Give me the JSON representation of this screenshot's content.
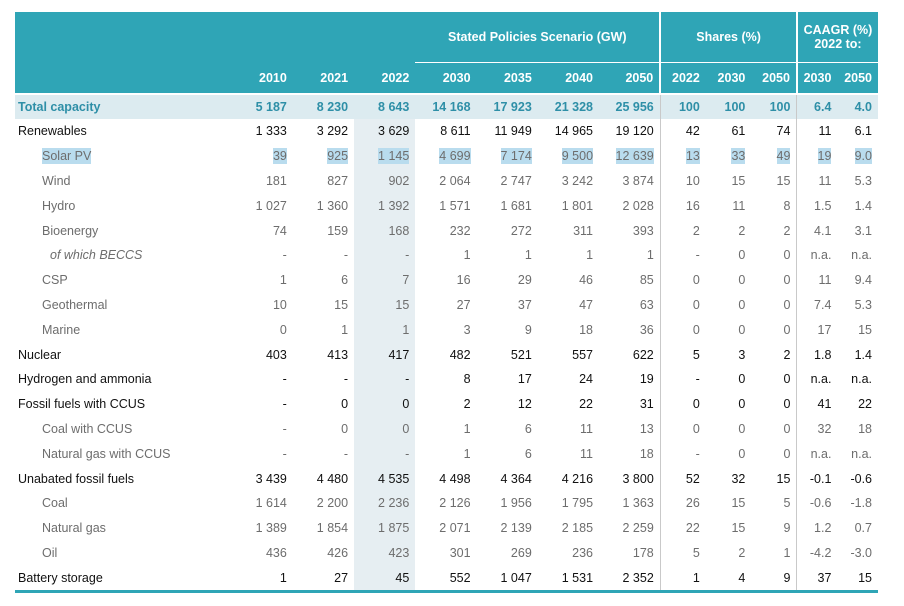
{
  "header": {
    "group_stated": "Stated Policies Scenario (GW)",
    "group_shares": "Shares (%)",
    "group_caagr_line1": "CAAGR (%)",
    "group_caagr_line2": "2022 to:",
    "years": [
      "2010",
      "2021",
      "2022",
      "2030",
      "2035",
      "2040",
      "2050"
    ],
    "share_years": [
      "2022",
      "2030",
      "2050"
    ],
    "caagr_years": [
      "2030",
      "2050"
    ]
  },
  "rows": [
    {
      "label": "Total capacity",
      "v": [
        "5 187",
        "8 230",
        "8 643",
        "14 168",
        "17 923",
        "21 328",
        "25 956"
      ],
      "s": [
        "100",
        "100",
        "100"
      ],
      "c": [
        "6.4",
        "4.0"
      ]
    },
    {
      "label": "Renewables",
      "v": [
        "1 333",
        "3 292",
        "3 629",
        "8 611",
        "11 949",
        "14 965",
        "19 120"
      ],
      "s": [
        "42",
        "61",
        "74"
      ],
      "c": [
        "11",
        "6.1"
      ]
    },
    {
      "label": "Solar PV",
      "v": [
        "39",
        "925",
        "1 145",
        "4 699",
        "7 174",
        "9 500",
        "12 639"
      ],
      "s": [
        "13",
        "33",
        "49"
      ],
      "c": [
        "19",
        "9.0"
      ]
    },
    {
      "label": "Wind",
      "v": [
        "181",
        "827",
        "902",
        "2 064",
        "2 747",
        "3 242",
        "3 874"
      ],
      "s": [
        "10",
        "15",
        "15"
      ],
      "c": [
        "11",
        "5.3"
      ]
    },
    {
      "label": "Hydro",
      "v": [
        "1 027",
        "1 360",
        "1 392",
        "1 571",
        "1 681",
        "1 801",
        "2 028"
      ],
      "s": [
        "16",
        "11",
        "8"
      ],
      "c": [
        "1.5",
        "1.4"
      ]
    },
    {
      "label": "Bioenergy",
      "v": [
        "74",
        "159",
        "168",
        "232",
        "272",
        "311",
        "393"
      ],
      "s": [
        "2",
        "2",
        "2"
      ],
      "c": [
        "4.1",
        "3.1"
      ]
    },
    {
      "label": "of which BECCS",
      "v": [
        "-",
        "-",
        "-",
        "1",
        "1",
        "1",
        "1"
      ],
      "s": [
        "-",
        "0",
        "0"
      ],
      "c": [
        "n.a.",
        "n.a."
      ]
    },
    {
      "label": "CSP",
      "v": [
        "1",
        "6",
        "7",
        "16",
        "29",
        "46",
        "85"
      ],
      "s": [
        "0",
        "0",
        "0"
      ],
      "c": [
        "11",
        "9.4"
      ]
    },
    {
      "label": "Geothermal",
      "v": [
        "10",
        "15",
        "15",
        "27",
        "37",
        "47",
        "63"
      ],
      "s": [
        "0",
        "0",
        "0"
      ],
      "c": [
        "7.4",
        "5.3"
      ]
    },
    {
      "label": "Marine",
      "v": [
        "0",
        "1",
        "1",
        "3",
        "9",
        "18",
        "36"
      ],
      "s": [
        "0",
        "0",
        "0"
      ],
      "c": [
        "17",
        "15"
      ]
    },
    {
      "label": "Nuclear",
      "v": [
        "403",
        "413",
        "417",
        "482",
        "521",
        "557",
        "622"
      ],
      "s": [
        "5",
        "3",
        "2"
      ],
      "c": [
        "1.8",
        "1.4"
      ]
    },
    {
      "label": "Hydrogen and ammonia",
      "v": [
        "-",
        "-",
        "-",
        "8",
        "17",
        "24",
        "19"
      ],
      "s": [
        "-",
        "0",
        "0"
      ],
      "c": [
        "n.a.",
        "n.a."
      ]
    },
    {
      "label": "Fossil fuels with CCUS",
      "v": [
        "-",
        "0",
        "0",
        "2",
        "12",
        "22",
        "31"
      ],
      "s": [
        "0",
        "0",
        "0"
      ],
      "c": [
        "41",
        "22"
      ]
    },
    {
      "label": "Coal with CCUS",
      "v": [
        "-",
        "0",
        "0",
        "1",
        "6",
        "11",
        "13"
      ],
      "s": [
        "0",
        "0",
        "0"
      ],
      "c": [
        "32",
        "18"
      ]
    },
    {
      "label": "Natural gas with CCUS",
      "v": [
        "-",
        "-",
        "-",
        "1",
        "6",
        "11",
        "18"
      ],
      "s": [
        "-",
        "0",
        "0"
      ],
      "c": [
        "n.a.",
        "n.a."
      ]
    },
    {
      "label": "Unabated fossil fuels",
      "v": [
        "3 439",
        "4 480",
        "4 535",
        "4 498",
        "4 364",
        "4 216",
        "3 800"
      ],
      "s": [
        "52",
        "32",
        "15"
      ],
      "c": [
        "-0.1",
        "-0.6"
      ]
    },
    {
      "label": "Coal",
      "v": [
        "1 614",
        "2 200",
        "2 236",
        "2 126",
        "1 956",
        "1 795",
        "1 363"
      ],
      "s": [
        "26",
        "15",
        "5"
      ],
      "c": [
        "-0.6",
        "-1.8"
      ]
    },
    {
      "label": "Natural gas",
      "v": [
        "1 389",
        "1 854",
        "1 875",
        "2 071",
        "2 139",
        "2 185",
        "2 259"
      ],
      "s": [
        "22",
        "15",
        "9"
      ],
      "c": [
        "1.2",
        "0.7"
      ]
    },
    {
      "label": "Oil",
      "v": [
        "436",
        "426",
        "423",
        "301",
        "269",
        "236",
        "178"
      ],
      "s": [
        "5",
        "2",
        "1"
      ],
      "c": [
        "-4.2",
        "-3.0"
      ]
    },
    {
      "label": "Battery storage",
      "v": [
        "1",
        "27",
        "45",
        "552",
        "1 047",
        "1 531",
        "2 352"
      ],
      "s": [
        "1",
        "4",
        "9"
      ],
      "c": [
        "37",
        "15"
      ]
    }
  ]
}
